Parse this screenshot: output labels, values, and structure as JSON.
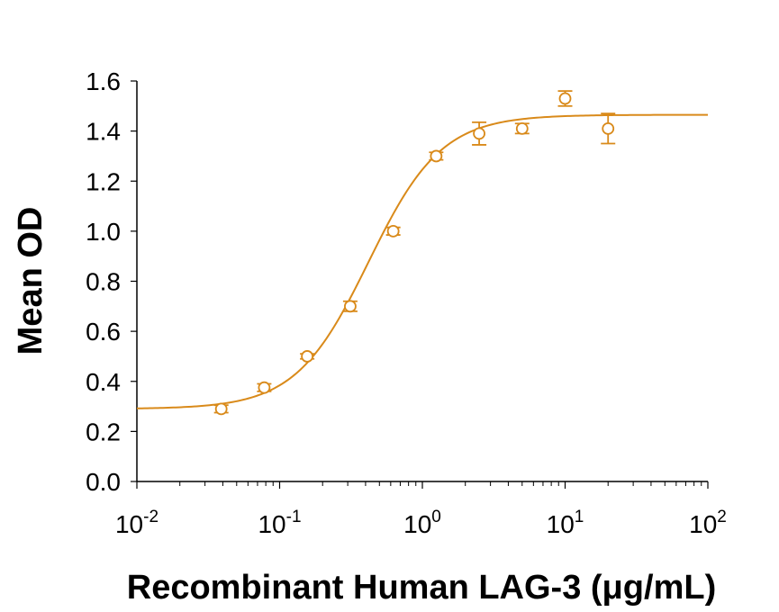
{
  "chart_data": {
    "type": "scatter",
    "title": "",
    "xlabel": "Recombinant Human LAG-3 (μg/mL)",
    "ylabel": "Mean OD",
    "xscale": "log",
    "xlim": [
      0.01,
      100
    ],
    "ylim": [
      0,
      1.6
    ],
    "grid": false,
    "legend": "none",
    "color": "#D98A1A",
    "x_tick_labels": [
      {
        "base": "10",
        "exp": "-2"
      },
      {
        "base": "10",
        "exp": "-1"
      },
      {
        "base": "10",
        "exp": "0"
      },
      {
        "base": "10",
        "exp": "1"
      },
      {
        "base": "10",
        "exp": "2"
      }
    ],
    "y_ticks": [
      "0.0",
      "0.2",
      "0.4",
      "0.6",
      "0.8",
      "1.0",
      "1.2",
      "1.4",
      "1.6"
    ],
    "series": [
      {
        "x": [
          0.039,
          0.078,
          0.156,
          0.3125,
          0.625,
          1.25,
          2.5,
          5,
          10,
          20
        ],
        "y": [
          0.29,
          0.375,
          0.5,
          0.7,
          1.0,
          1.3,
          1.39,
          1.41,
          1.53,
          1.41
        ],
        "error": [
          0.015,
          0.015,
          0.01,
          0.02,
          0.015,
          0.015,
          0.045,
          0.02,
          0.03,
          0.06
        ]
      }
    ],
    "fit": {
      "model": "4PL",
      "bottom": 0.29,
      "top": 1.465,
      "ec50": 0.42,
      "hill": 1.7
    }
  }
}
